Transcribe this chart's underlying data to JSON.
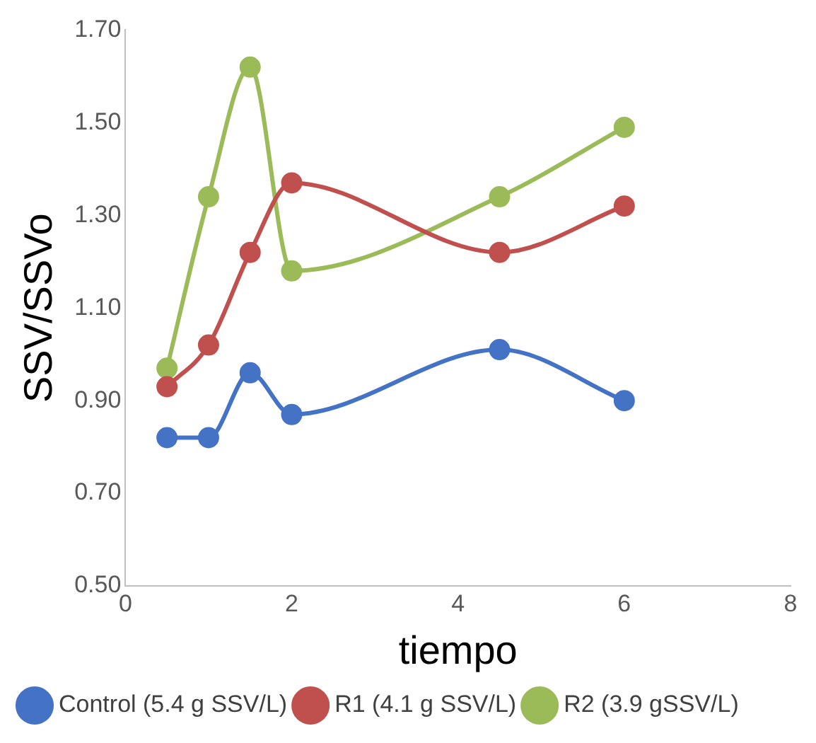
{
  "chart_data": {
    "type": "line",
    "xlabel": "tiempo",
    "ylabel": "SSV/SSVo",
    "x": [
      0.5,
      1,
      1.5,
      2,
      4.5,
      6
    ],
    "series": [
      {
        "name": "Control (5.4 g SSV/L)",
        "color": "#4472c4",
        "values": [
          0.82,
          0.82,
          0.96,
          0.87,
          1.01,
          0.9
        ]
      },
      {
        "name": "R1 (4.1 g SSV/L)",
        "color": "#c0504d",
        "values": [
          0.93,
          1.02,
          1.22,
          1.37,
          1.22,
          1.32
        ]
      },
      {
        "name": "R2 (3.9 gSSV/L)",
        "color": "#9bbb59",
        "values": [
          0.97,
          1.34,
          1.62,
          1.18,
          1.34,
          1.49
        ]
      }
    ],
    "xlim": [
      0,
      8
    ],
    "xticks": [
      0,
      2,
      4,
      6,
      8
    ],
    "ylim": [
      0.5,
      1.7
    ],
    "yticks": [
      {
        "value": 0.5,
        "label": "0.50"
      },
      {
        "value": 0.7,
        "label": "0.70"
      },
      {
        "value": 0.9,
        "label": "0.90"
      },
      {
        "value": 1.1,
        "label": "1.10"
      },
      {
        "value": 1.3,
        "label": "1.30"
      },
      {
        "value": 1.5,
        "label": "1.50"
      },
      {
        "value": 1.7,
        "label": "1.70"
      }
    ],
    "grid": false,
    "legend": "bottom",
    "marker": "circle",
    "line_style": "solid"
  }
}
